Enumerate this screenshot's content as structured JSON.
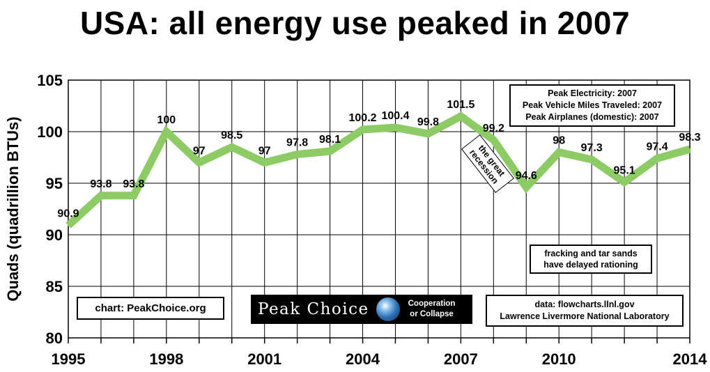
{
  "chart_data": {
    "type": "line",
    "title": "USA: all energy use peaked in 2007",
    "ylabel": "Quads (quadrillion BTUs)",
    "xlabel": "",
    "ylim": [
      80,
      105
    ],
    "xlim": [
      1995,
      2014
    ],
    "yticks": [
      80,
      85,
      90,
      95,
      100,
      105
    ],
    "xticks": [
      1995,
      1998,
      2001,
      2004,
      2007,
      2010,
      2014
    ],
    "grid": true,
    "series_color": "#8dcc64",
    "x": [
      1995,
      1996,
      1997,
      1998,
      1999,
      2000,
      2001,
      2002,
      2003,
      2004,
      2005,
      2006,
      2007,
      2008,
      2009,
      2010,
      2011,
      2012,
      2013,
      2014
    ],
    "series": [
      {
        "values": [
          90.9,
          93.8,
          93.8,
          100,
          97,
          98.5,
          97,
          97.8,
          98.1,
          100.2,
          100.4,
          99.8,
          101.5,
          99.2,
          94.6,
          98,
          97.3,
          95.1,
          97.4,
          98.3
        ]
      }
    ],
    "data_labels": [
      "90.9",
      "93.8",
      "93.8",
      "100",
      "97",
      "98.5",
      "97",
      "97.8",
      "98.1",
      "100.2",
      "100.4",
      "99.8",
      "101.5",
      "99.2",
      "94.6",
      "98",
      "97.3",
      "95.1",
      "97.4",
      "98.3"
    ],
    "annotations": {
      "peaks": [
        "Peak Electricity: 2007",
        "Peak Vehicle Miles Traveled: 2007",
        "Peak Airplanes (domestic): 2007"
      ],
      "recession": "the great recession",
      "fracking": [
        "fracking and tar sands",
        "have delayed rationing"
      ],
      "source": [
        "data: flowcharts.llnl.gov",
        "Lawrence Livermore National Laboratory"
      ],
      "credit": "chart:  PeakChoice.org"
    }
  },
  "logo": {
    "name": "Peak Choice",
    "tagline_line1": "Cooperation",
    "tagline_line2": "or Collapse",
    "icon": "globe-icon"
  }
}
